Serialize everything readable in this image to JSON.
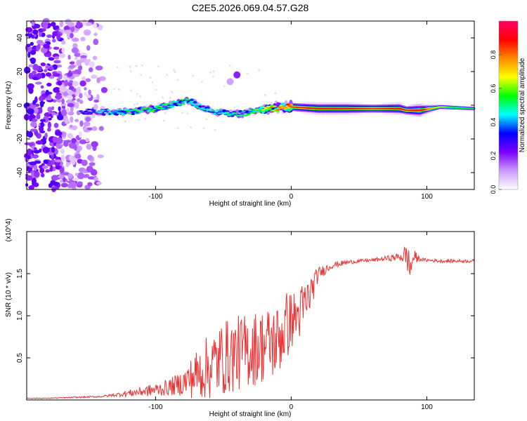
{
  "page_title": "C2E5.2026.069.04.57.G28",
  "chart_data": [
    {
      "type": "heatmap",
      "title": "C2E5.2026.069.04.57.G28",
      "xlabel": "Height of straight line (km)",
      "ylabel": "Frequency (Hz)",
      "xlim": [
        -195,
        135
      ],
      "ylim": [
        -50,
        50
      ],
      "x_ticks": [
        -100,
        0,
        100
      ],
      "y_ticks": [
        -40,
        -20,
        0,
        20,
        40
      ],
      "colorbar": {
        "label": "Normalized spectral amplitude",
        "range": [
          0,
          1
        ],
        "ticks": [
          0.0,
          0.2,
          0.4,
          0.6,
          0.8
        ],
        "colormap": [
          "#ffffff",
          "#cc99ff",
          "#7a00ff",
          "#0000ff",
          "#00ffff",
          "#00ff00",
          "#ffff00",
          "#ff8800",
          "#ff0000",
          "#ff0066"
        ]
      },
      "ridge": {
        "description": "dominant frequency ridge vs height",
        "x": [
          -155,
          -140,
          -120,
          -100,
          -85,
          -75,
          -65,
          -55,
          -45,
          -35,
          -25,
          -15,
          -5,
          0,
          20,
          40,
          60,
          80,
          85,
          95,
          110,
          135
        ],
        "frequency_hz": [
          -4,
          -4,
          -4,
          -2,
          1,
          3,
          -2,
          -4,
          -5,
          -5,
          -3,
          -2,
          -1,
          -1,
          -2,
          -2,
          -2,
          -2,
          -3,
          -3,
          -1,
          -2
        ],
        "amplitude": [
          0.3,
          0.4,
          0.5,
          0.55,
          0.5,
          0.5,
          0.45,
          0.45,
          0.45,
          0.5,
          0.55,
          0.7,
          0.8,
          0.85,
          0.9,
          0.9,
          0.85,
          0.9,
          0.85,
          0.95,
          0.6,
          0.5
        ]
      },
      "features": [
        {
          "x": -40,
          "frequency_hz": 18,
          "amplitude": 0.2,
          "note": "isolated blob"
        },
        {
          "x": -45,
          "frequency_hz": 14,
          "amplitude": 0.1,
          "note": "isolated blob"
        }
      ],
      "noise_region": {
        "x_range": [
          -195,
          -135
        ],
        "frequency_range_hz": [
          -50,
          50
        ],
        "amplitude": 0.05
      }
    },
    {
      "type": "line",
      "xlabel": "Height of straight line (km)",
      "ylabel": "SNR (10 * v/v)",
      "y_multiplier_label": "(x10^4)",
      "xlim": [
        -195,
        135
      ],
      "ylim": [
        0,
        2
      ],
      "x_ticks": [
        -100,
        0,
        100
      ],
      "y_ticks": [
        0.5,
        1.0,
        1.5
      ],
      "color": "#ee3333",
      "series": [
        {
          "name": "SNR",
          "x": [
            -195,
            -180,
            -160,
            -140,
            -130,
            -120,
            -110,
            -100,
            -90,
            -80,
            -70,
            -60,
            -50,
            -40,
            -30,
            -20,
            -10,
            -5,
            0,
            5,
            10,
            15,
            20,
            30,
            40,
            50,
            60,
            70,
            80,
            85,
            88,
            90,
            95,
            100,
            110,
            120,
            135
          ],
          "y": [
            0.02,
            0.02,
            0.03,
            0.04,
            0.06,
            0.08,
            0.1,
            0.12,
            0.15,
            0.2,
            0.3,
            0.4,
            0.5,
            0.55,
            0.6,
            0.65,
            0.7,
            0.85,
            0.95,
            1.0,
            1.1,
            1.3,
            1.5,
            1.6,
            1.63,
            1.65,
            1.66,
            1.68,
            1.7,
            1.72,
            1.55,
            1.7,
            1.67,
            1.66,
            1.65,
            1.65,
            1.65
          ],
          "spread": [
            0.005,
            0.005,
            0.008,
            0.01,
            0.02,
            0.04,
            0.06,
            0.08,
            0.1,
            0.15,
            0.3,
            0.4,
            0.45,
            0.45,
            0.45,
            0.45,
            0.45,
            0.45,
            0.35,
            0.3,
            0.35,
            0.2,
            0.08,
            0.04,
            0.03,
            0.02,
            0.02,
            0.03,
            0.05,
            0.15,
            0.2,
            0.1,
            0.02,
            0.02,
            0.02,
            0.02,
            0.02
          ]
        }
      ]
    }
  ]
}
